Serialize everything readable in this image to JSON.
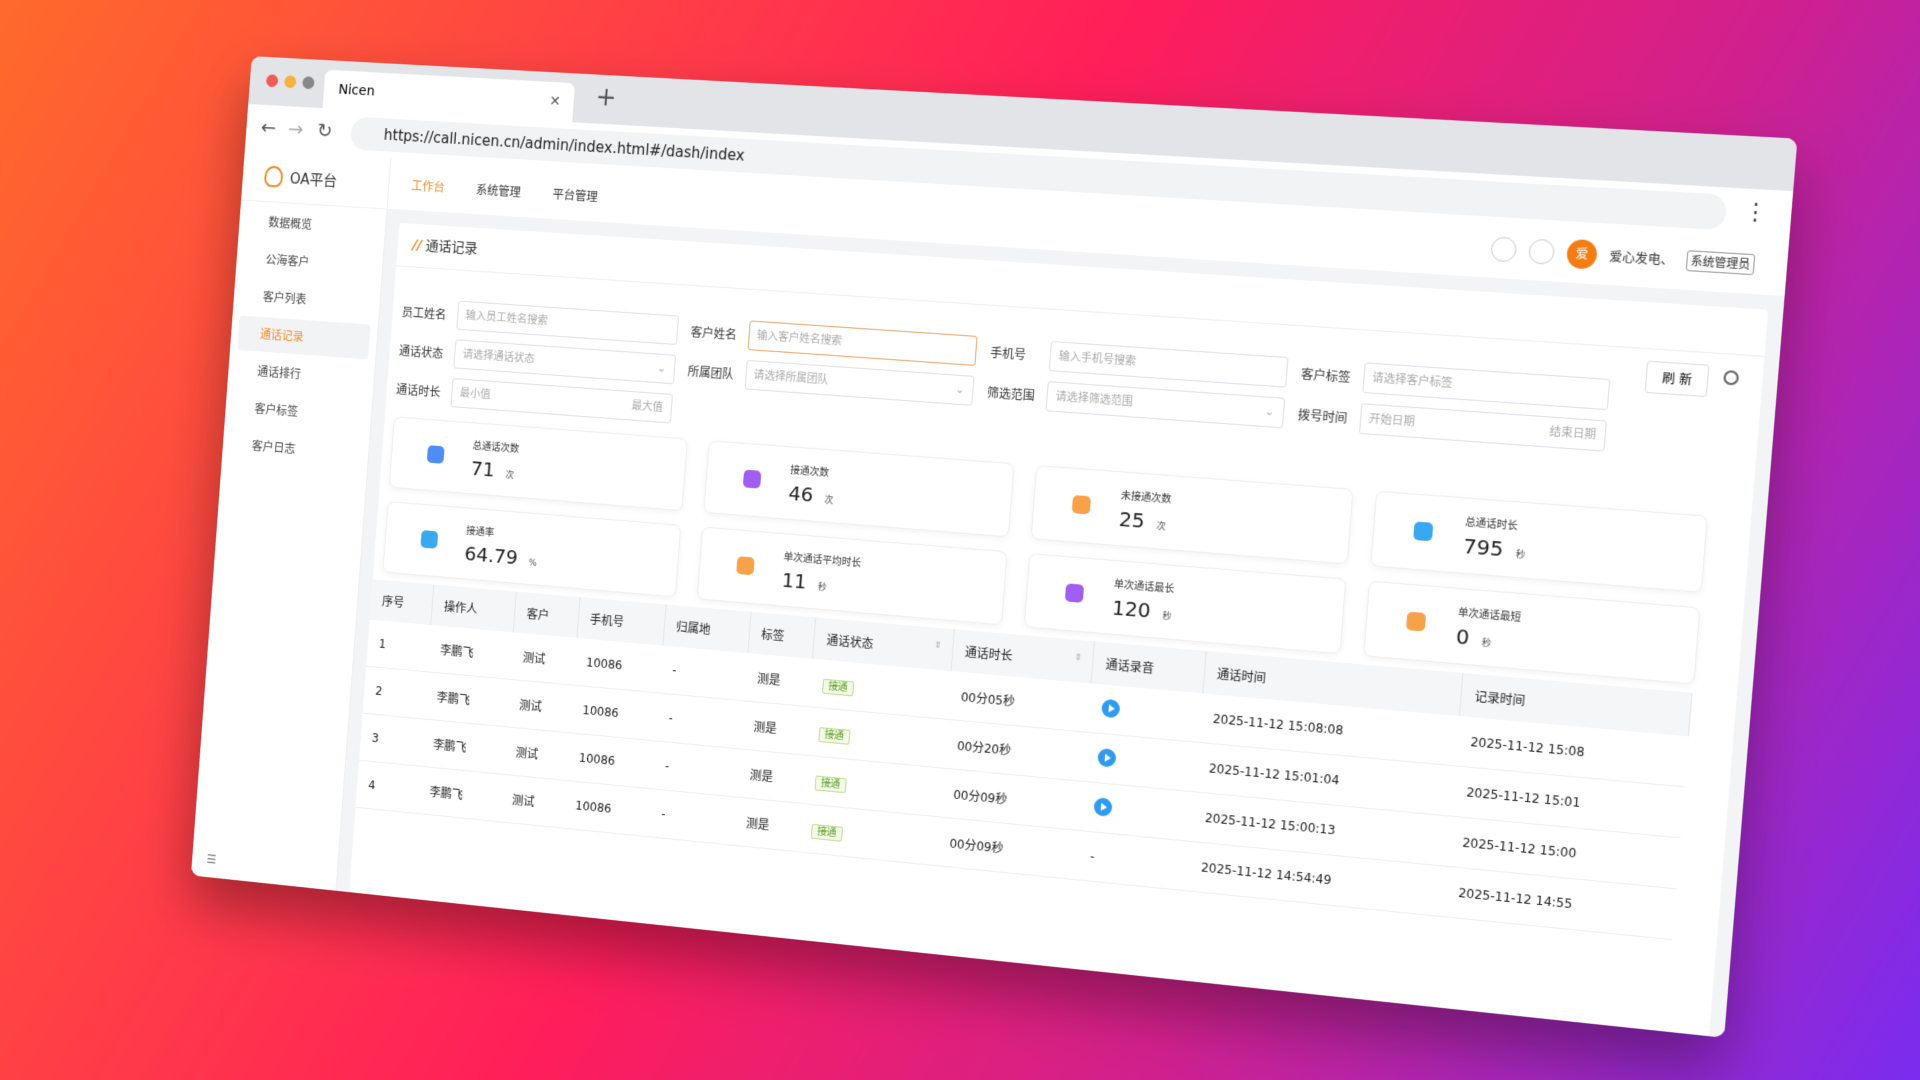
{
  "browser": {
    "tab_title": "Nicen",
    "url": "https://call.nicen.cn/admin/index.html#/dash/index"
  },
  "app": {
    "logo_text": "OA平台",
    "top_nav": [
      {
        "label": "工作台",
        "active": true
      },
      {
        "label": "系统管理"
      },
      {
        "label": "平台管理"
      }
    ],
    "user_avatar": "爱",
    "user_name": "爱心发电、",
    "user_role": "系统管理员"
  },
  "sidebar": [
    {
      "label": "数据概览"
    },
    {
      "label": "公海客户"
    },
    {
      "label": "客户列表"
    },
    {
      "label": "通话记录",
      "active": true
    },
    {
      "label": "通话排行"
    },
    {
      "label": "客户标签"
    },
    {
      "label": "客户日志"
    }
  ],
  "page": {
    "title": "通话记录",
    "refresh": "刷 新"
  },
  "filters": [
    {
      "label": "员工姓名",
      "placeholder": "输入员工姓名搜索"
    },
    {
      "label": "客户姓名",
      "placeholder": "输入客户姓名搜索"
    },
    {
      "label": "手机号",
      "placeholder": "输入手机号搜索"
    },
    {
      "label": "客户标签",
      "placeholder": "请选择客户标签"
    },
    {
      "label": "通话状态",
      "placeholder": "请选择通话状态",
      "select": true
    },
    {
      "label": "所属团队",
      "placeholder": "请选择所属团队",
      "select": true
    },
    {
      "label": "筛选范围",
      "placeholder": "请选择筛选范围",
      "select": true
    },
    {
      "label": "拨号时间",
      "placeholder": "开始日期",
      "placeholder2": "结束日期"
    },
    {
      "label": "通话时长",
      "placeholder": "最小值",
      "placeholder2": "最大值"
    }
  ],
  "stats": [
    {
      "label": "总通话次数",
      "value": 71,
      "unit": "次",
      "color": "#4d8df6"
    },
    {
      "label": "接通次数",
      "value": 46,
      "unit": "次",
      "color": "#a25ef0"
    },
    {
      "label": "未接通次数",
      "value": 25,
      "unit": "次",
      "color": "#f7a24b"
    },
    {
      "label": "总通话时长",
      "value": 795,
      "unit": "秒",
      "color": "#3aa8f0"
    },
    {
      "label": "接通率",
      "value": 64.79,
      "unit": "%",
      "color": "#3aa8f0"
    },
    {
      "label": "单次通话平均时长",
      "value": 11,
      "unit": "秒",
      "color": "#f7a24b"
    },
    {
      "label": "单次通话最长",
      "value": 120,
      "unit": "秒",
      "color": "#a25ef0"
    },
    {
      "label": "单次通话最短",
      "value": 0,
      "unit": "秒",
      "color": "#f7a24b"
    }
  ],
  "table": {
    "columns": [
      {
        "label": "序号"
      },
      {
        "label": "操作人"
      },
      {
        "label": "客户"
      },
      {
        "label": "手机号"
      },
      {
        "label": "归属地"
      },
      {
        "label": "标签"
      },
      {
        "label": "通话状态",
        "sortable": true
      },
      {
        "label": "通话时长",
        "sortable": true
      },
      {
        "label": "通话录音"
      },
      {
        "label": "通话时间"
      },
      {
        "label": "记录时间"
      }
    ],
    "rows": [
      [
        "1",
        "李鹏飞",
        "测试",
        "10086",
        "-",
        "测是",
        "接通",
        "00分05秒",
        true,
        "2025-11-12 15:08:08",
        "2025-11-12 15:08"
      ],
      [
        "2",
        "李鹏飞",
        "测试",
        "10086",
        "-",
        "测是",
        "接通",
        "00分20秒",
        true,
        "2025-11-12 15:01:04",
        "2025-11-12 15:01"
      ],
      [
        "3",
        "李鹏飞",
        "测试",
        "10086",
        "-",
        "测是",
        "接通",
        "00分09秒",
        true,
        "2025-11-12 15:00:13",
        "2025-11-12 15:00"
      ],
      [
        "4",
        "李鹏飞",
        "测试",
        "10086",
        "-",
        "测是",
        "接通",
        "00分09秒",
        "-",
        "2025-11-12 14:54:49",
        "2025-11-12 14:55"
      ]
    ]
  }
}
